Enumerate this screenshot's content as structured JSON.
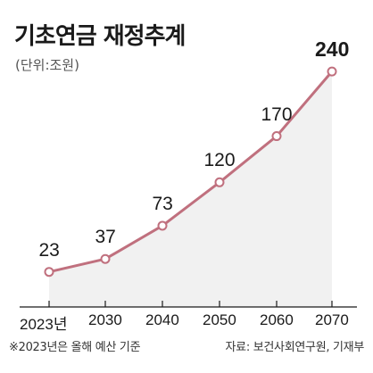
{
  "title": "기초연금 재정추계",
  "subtitle": "(단위:조원)",
  "footnote": "※2023년은 올해 예산 기준",
  "source": "자료: 보건사회연구원, 기재부",
  "colors": {
    "line": "#c0707e",
    "point_fill": "#ffffff",
    "area_fill": "#f1f1f1",
    "axis": "#1a1a1a"
  },
  "chart_data": {
    "type": "line",
    "categories": [
      "2023년",
      "2030",
      "2040",
      "2050",
      "2060",
      "2070"
    ],
    "values": [
      23,
      37,
      73,
      120,
      170,
      240
    ],
    "data_labels": [
      "23",
      "37",
      "73",
      "120",
      "170",
      "240"
    ],
    "title": "기초연금 재정추계",
    "ylabel": "",
    "xlabel": "",
    "area_under_line": true,
    "grid": false
  }
}
